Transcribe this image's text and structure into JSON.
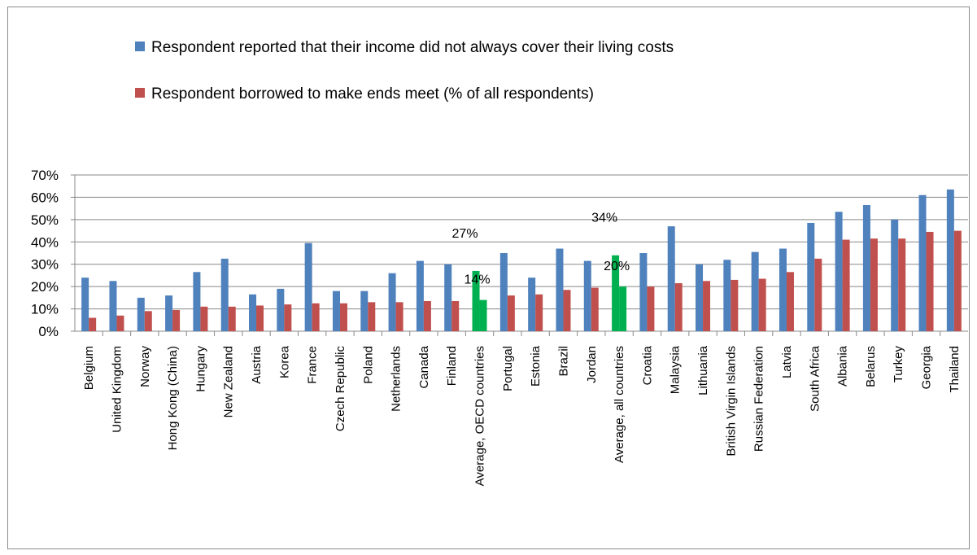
{
  "chart_data": {
    "type": "bar",
    "ylim": [
      0,
      0.7
    ],
    "yticks": [
      "0%",
      "10%",
      "20%",
      "30%",
      "40%",
      "50%",
      "60%",
      "70%"
    ],
    "grid": true,
    "legend_position": "top",
    "categories": [
      "Belgium",
      "United Kingdom",
      "Norway",
      "Hong Kong (China)",
      "Hungary",
      "New Zealand",
      "Austria",
      "Korea",
      "France",
      "Czech Republic",
      "Poland",
      "Netherlands",
      "Canada",
      "Finland",
      "Average,  OECD countries",
      "Portugal",
      "Estonia",
      "Brazil",
      "Jordan",
      "Average, all countries",
      "Croatia",
      "Malaysia",
      "Lithuania",
      "British Virgin Islands",
      "Russian Federation",
      "Latvia",
      "South Africa",
      "Albania",
      "Belarus",
      "Turkey",
      "Georgia",
      "Thailand"
    ],
    "series": [
      {
        "name": "Respondent reported that their income did not always cover their living costs",
        "color": "#4f81bd",
        "values": [
          0.24,
          0.225,
          0.15,
          0.16,
          0.265,
          0.325,
          0.165,
          0.19,
          0.395,
          0.18,
          0.18,
          0.26,
          0.315,
          0.3,
          0.27,
          0.35,
          0.24,
          0.37,
          0.315,
          0.34,
          0.35,
          0.47,
          0.3,
          0.32,
          0.355,
          0.37,
          0.485,
          0.535,
          0.565,
          0.5,
          0.61,
          0.635
        ]
      },
      {
        "name": "Respondent borrowed to make ends meet (% of all respondents)",
        "color": "#c0504d",
        "values": [
          0.06,
          0.07,
          0.09,
          0.095,
          0.11,
          0.11,
          0.115,
          0.12,
          0.125,
          0.125,
          0.13,
          0.13,
          0.135,
          0.135,
          0.14,
          0.16,
          0.165,
          0.185,
          0.195,
          0.2,
          0.2,
          0.215,
          0.225,
          0.23,
          0.235,
          0.265,
          0.325,
          0.41,
          0.415,
          0.415,
          0.445,
          0.45
        ]
      }
    ],
    "highlight": {
      "color": "#00b050",
      "categories": [
        "Average,  OECD countries",
        "Average, all countries"
      ]
    },
    "annotations": [
      {
        "category": "Average,  OECD countries",
        "label": "27%",
        "value": 0.27
      },
      {
        "category": "Average,  OECD countries",
        "label": "14%",
        "value": 0.14
      },
      {
        "category": "Average, all countries",
        "label": "34%",
        "value": 0.34
      },
      {
        "category": "Average, all countries",
        "label": "20%",
        "value": 0.2
      }
    ]
  }
}
